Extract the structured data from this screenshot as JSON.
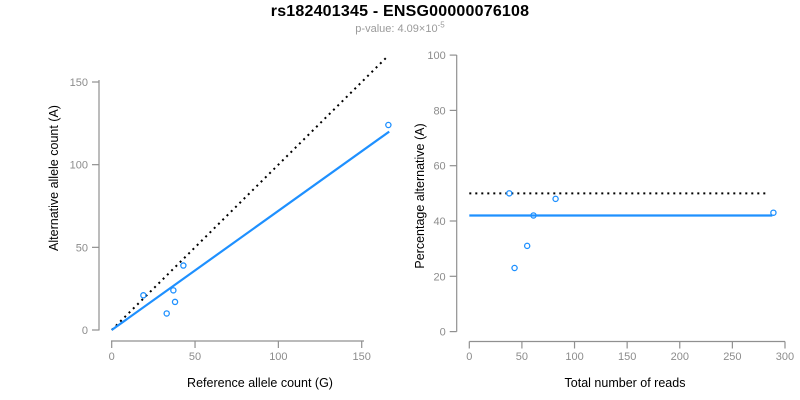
{
  "header": {
    "title": "rs182401345 - ENSG00000076108",
    "subtitle_prefix": "p-value: ",
    "subtitle_value": "4.09×10",
    "subtitle_exponent": "-5"
  },
  "colors": {
    "accent_blue": "#1E90FF",
    "axis_gray": "#909090",
    "tick_label_gray": "#8c8c8c",
    "axis_title_black": "#000000",
    "subtitle_gray": "#9a9a9a",
    "dotted_line_black": "#000000"
  },
  "chart_data": [
    {
      "type": "scatter",
      "panel": "left",
      "xlabel": "Reference allele count (G)",
      "ylabel": "Alternative allele count (A)",
      "xticks": [
        0,
        50,
        100,
        150
      ],
      "yticks": [
        0,
        50,
        100,
        150
      ],
      "xlim": [
        0,
        170
      ],
      "ylim": [
        0,
        170
      ],
      "points": [
        {
          "x": 19,
          "y": 21
        },
        {
          "x": 37,
          "y": 24
        },
        {
          "x": 38,
          "y": 17
        },
        {
          "x": 33,
          "y": 10
        },
        {
          "x": 43,
          "y": 39
        },
        {
          "x": 166,
          "y": 124
        }
      ],
      "lines": [
        {
          "name": "identity-line",
          "style": "dotted",
          "color": "black",
          "x1": 0,
          "y1": 0,
          "x2": 166,
          "y2": 166
        },
        {
          "name": "regression-line",
          "style": "solid",
          "color": "blue",
          "x1": 0,
          "y1": 0,
          "x2": 166.5,
          "y2": 120
        }
      ],
      "legend": "none",
      "grid": false
    },
    {
      "type": "scatter",
      "panel": "right",
      "xlabel": "Total number of reads",
      "ylabel": "Percentage alternative (A)",
      "xticks": [
        0,
        50,
        100,
        150,
        200,
        250,
        300
      ],
      "yticks": [
        0,
        20,
        40,
        60,
        80,
        100
      ],
      "xlim": [
        0,
        300
      ],
      "ylim": [
        0,
        100
      ],
      "points": [
        {
          "x": 38,
          "y": 50
        },
        {
          "x": 82,
          "y": 48
        },
        {
          "x": 61,
          "y": 42
        },
        {
          "x": 55,
          "y": 31
        },
        {
          "x": 43,
          "y": 23
        },
        {
          "x": 289,
          "y": 43
        }
      ],
      "lines": [
        {
          "name": "fifty-percent-line",
          "style": "dotted",
          "color": "black",
          "x1": 0,
          "y1": 50,
          "x2": 284,
          "y2": 50
        },
        {
          "name": "mean-ratio-line",
          "style": "solid",
          "color": "blue",
          "x1": 0,
          "y1": 42,
          "x2": 288,
          "y2": 42
        }
      ],
      "legend": "none",
      "grid": false
    }
  ]
}
